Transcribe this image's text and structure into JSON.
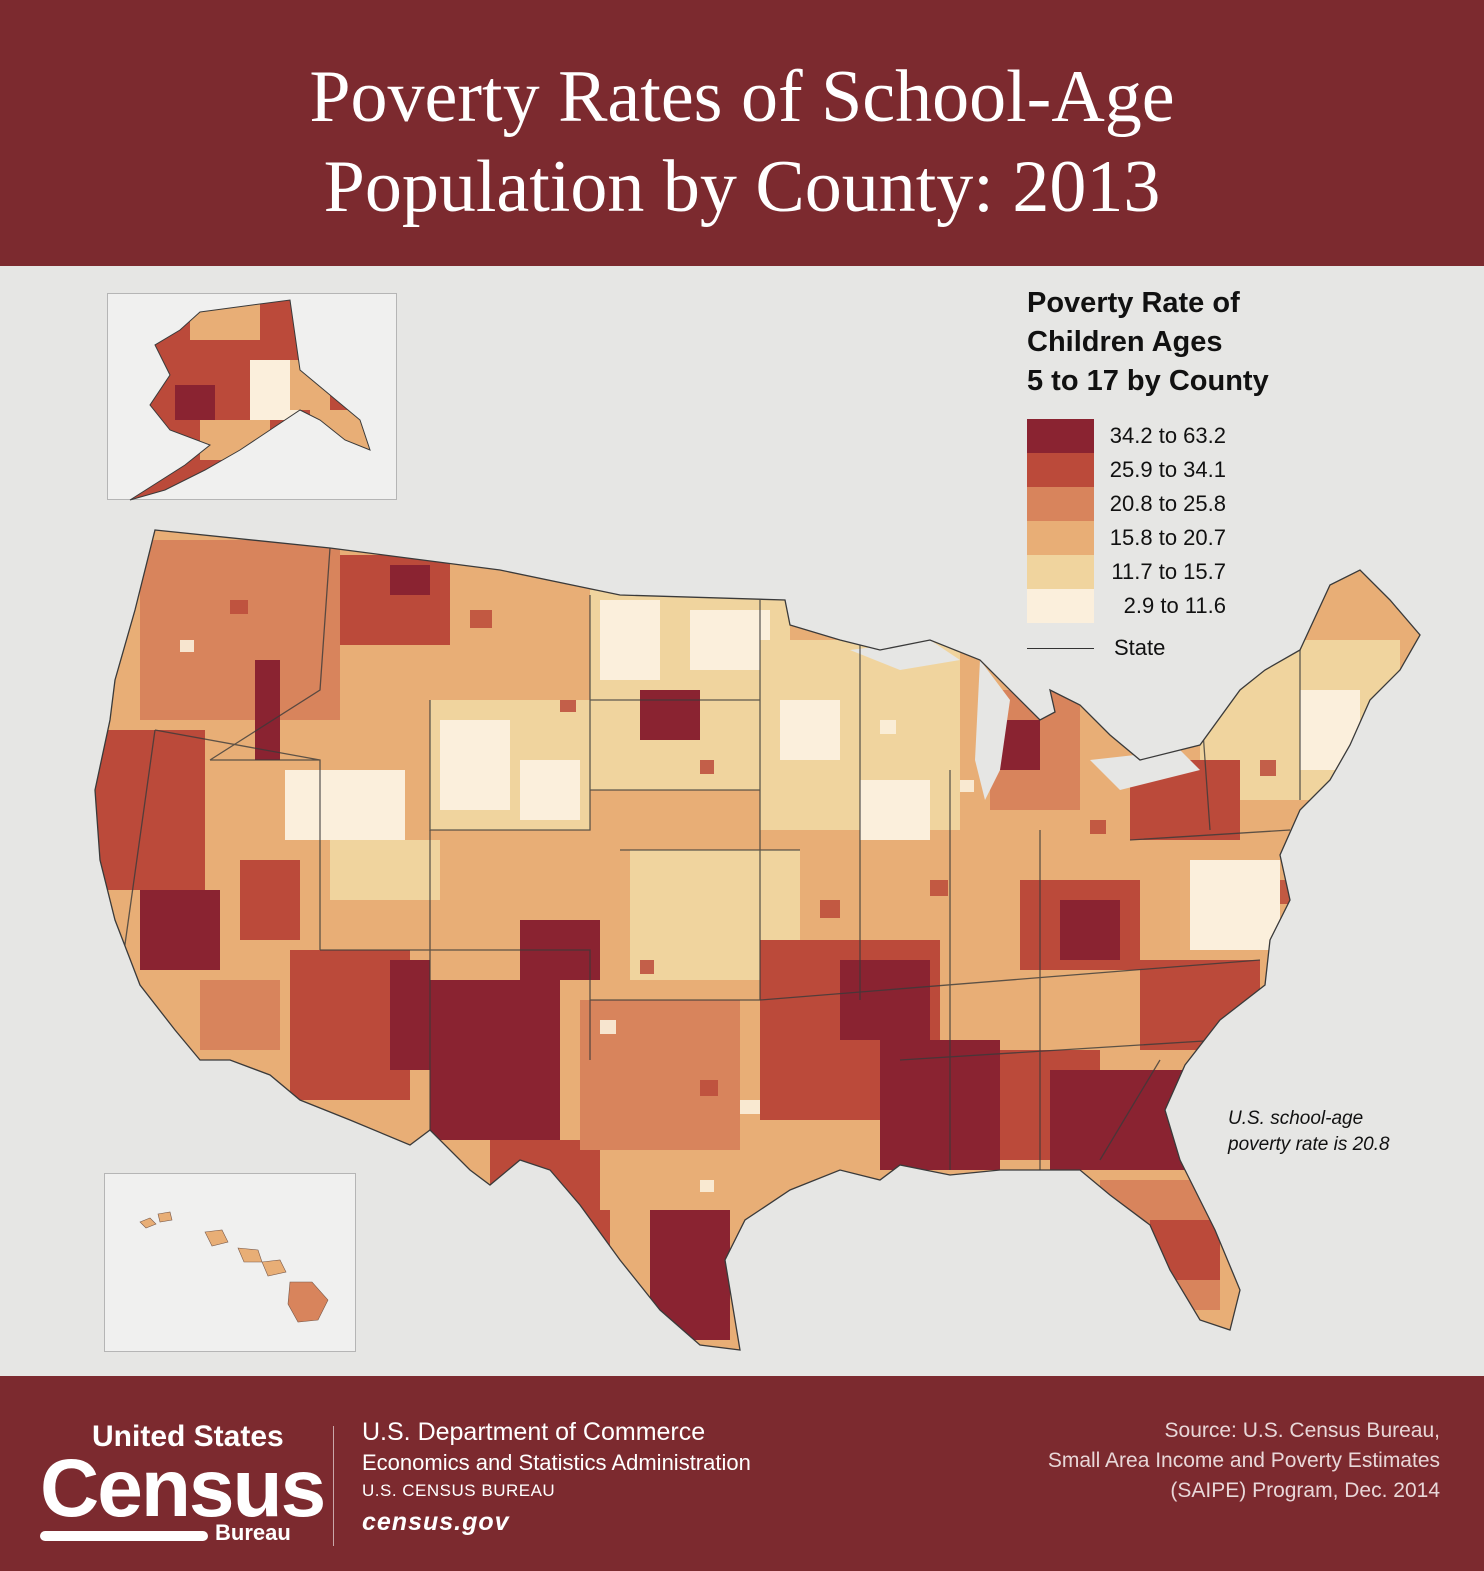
{
  "header": {
    "title": "Poverty Rates of School-Age\nPopulation by County: 2013"
  },
  "colors": {
    "banner": "#7c2a2f",
    "background": "#e6e6e4",
    "class_1": "#8a2331",
    "class_2": "#bb4a3a",
    "class_3": "#d8845c",
    "class_4": "#e8ae76",
    "class_5": "#f0d49e",
    "class_6": "#fbefdc"
  },
  "legend": {
    "title": "Poverty Rate of\nChildren Ages\n5 to 17 by County",
    "items": [
      {
        "label": "34.2 to 63.2",
        "color": "#8a2331"
      },
      {
        "label": "25.9 to 34.1",
        "color": "#bb4a3a"
      },
      {
        "label": "20.8 to 25.8",
        "color": "#d8845c"
      },
      {
        "label": "15.8 to 20.7",
        "color": "#e8ae76"
      },
      {
        "label": "11.7 to 15.7",
        "color": "#f0d49e"
      },
      {
        "label": "2.9 to 11.6",
        "color": "#fbefdc"
      }
    ],
    "state_label": "State"
  },
  "note": "U.S. school-age\npoverty rate is 20.8",
  "footer": {
    "logo": {
      "top": "United States",
      "main": "Census",
      "bureau": "Bureau"
    },
    "dept_line1": "U.S. Department of Commerce",
    "dept_line2": "Economics and Statistics Administration",
    "dept_line3": "U.S. CENSUS BUREAU",
    "website": "census.gov",
    "source": "Source: U.S. Census Bureau,\nSmall Area Income and Poverty Estimates\n(SAIPE) Program, Dec. 2014"
  }
}
